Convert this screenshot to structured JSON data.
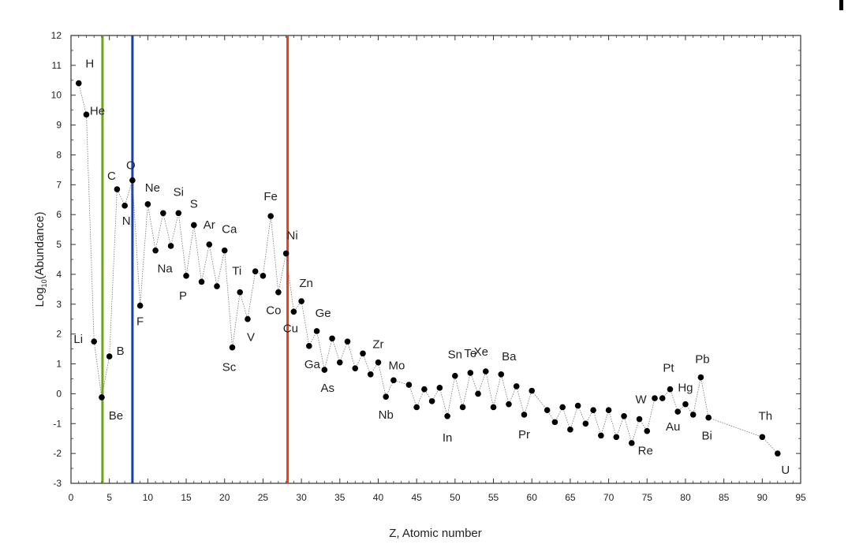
{
  "chart_data": {
    "type": "scatter",
    "title": "",
    "xlabel": "Z, Atomic number",
    "ylabel_main": "Log",
    "ylabel_sub": "10",
    "ylabel_rest": "(Abundance)",
    "xlim": [
      0,
      95
    ],
    "ylim": [
      -3,
      12
    ],
    "xticks": [
      0,
      5,
      10,
      15,
      20,
      25,
      30,
      35,
      40,
      45,
      50,
      55,
      60,
      65,
      70,
      75,
      80,
      85,
      90,
      95
    ],
    "yticks": [
      -3,
      -2,
      -1,
      0,
      1,
      2,
      3,
      4,
      5,
      6,
      7,
      8,
      9,
      10,
      11,
      12
    ],
    "grid": false,
    "series": [
      {
        "line": "dotted-gray",
        "marker": "filled-circle",
        "x": [
          1,
          2,
          3,
          4,
          5,
          6,
          7,
          8,
          9,
          10,
          11,
          12,
          13,
          14,
          15,
          16,
          17,
          18,
          19,
          20,
          21,
          22,
          23,
          24,
          25,
          26,
          27,
          28,
          29,
          30,
          31,
          32,
          33,
          34,
          35,
          36,
          37,
          38,
          39,
          40,
          41,
          42,
          44,
          45,
          46,
          47,
          48,
          49,
          50,
          51,
          52,
          53,
          54,
          55,
          56,
          57,
          58,
          59,
          60,
          62,
          63,
          64,
          65,
          66,
          67,
          68,
          69,
          70,
          71,
          72,
          73,
          74,
          75,
          76,
          77,
          78,
          79,
          80,
          81,
          82,
          83,
          90,
          92
        ],
        "y": [
          10.4,
          9.35,
          1.75,
          -0.12,
          1.25,
          6.85,
          6.3,
          7.15,
          2.95,
          6.35,
          4.8,
          6.05,
          4.95,
          6.05,
          3.95,
          5.65,
          3.75,
          5.0,
          3.6,
          4.8,
          1.55,
          3.4,
          2.5,
          4.1,
          3.95,
          5.95,
          3.4,
          4.7,
          2.75,
          3.1,
          1.6,
          2.1,
          0.8,
          1.85,
          1.05,
          1.75,
          0.85,
          1.35,
          0.65,
          1.05,
          -0.1,
          0.45,
          0.3,
          -0.45,
          0.15,
          -0.25,
          0.2,
          -0.75,
          0.6,
          -0.45,
          0.7,
          0.0,
          0.75,
          -0.45,
          0.65,
          -0.35,
          0.25,
          -0.7,
          0.1,
          -0.55,
          -0.95,
          -0.45,
          -1.2,
          -0.4,
          -1.0,
          -0.55,
          -1.4,
          -0.55,
          -1.45,
          -0.75,
          -1.65,
          -0.85,
          -1.25,
          -0.15,
          -0.15,
          0.15,
          -0.6,
          -0.35,
          -0.7,
          0.55,
          -0.8,
          -1.45,
          -2.0
        ]
      }
    ],
    "element_labels": [
      {
        "text": "H",
        "x": 1,
        "y": 10.4
      },
      {
        "text": "He",
        "x": 2,
        "y": 9.35
      },
      {
        "text": "Li",
        "x": 3,
        "y": 1.75
      },
      {
        "text": "Be",
        "x": 4,
        "y": -0.12
      },
      {
        "text": "B",
        "x": 5,
        "y": 1.25
      },
      {
        "text": "C",
        "x": 6,
        "y": 6.85
      },
      {
        "text": "N",
        "x": 7,
        "y": 6.3
      },
      {
        "text": "O",
        "x": 8,
        "y": 7.15
      },
      {
        "text": "F",
        "x": 9,
        "y": 2.95
      },
      {
        "text": "Ne",
        "x": 10,
        "y": 6.35
      },
      {
        "text": "Na",
        "x": 11,
        "y": 4.8
      },
      {
        "text": "Si",
        "x": 14,
        "y": 6.05
      },
      {
        "text": "P",
        "x": 15,
        "y": 3.95
      },
      {
        "text": "S",
        "x": 16,
        "y": 5.65
      },
      {
        "text": "Ar",
        "x": 18,
        "y": 5.0
      },
      {
        "text": "Ca",
        "x": 20,
        "y": 4.8
      },
      {
        "text": "Sc",
        "x": 21,
        "y": 1.55
      },
      {
        "text": "Ti",
        "x": 22,
        "y": 3.4
      },
      {
        "text": "V",
        "x": 23,
        "y": 2.5
      },
      {
        "text": "Fe",
        "x": 26,
        "y": 5.95
      },
      {
        "text": "Co",
        "x": 27,
        "y": 3.4
      },
      {
        "text": "Ni",
        "x": 28,
        "y": 4.7
      },
      {
        "text": "Cu",
        "x": 29,
        "y": 2.75
      },
      {
        "text": "Zn",
        "x": 30,
        "y": 3.1
      },
      {
        "text": "Ga",
        "x": 31,
        "y": 1.6
      },
      {
        "text": "Ge",
        "x": 32,
        "y": 2.1
      },
      {
        "text": "As",
        "x": 33,
        "y": 0.8
      },
      {
        "text": "Zr",
        "x": 40,
        "y": 1.05
      },
      {
        "text": "Nb",
        "x": 41,
        "y": -0.1
      },
      {
        "text": "Mo",
        "x": 42,
        "y": 0.45
      },
      {
        "text": "Sn",
        "x": 50,
        "y": 0.6
      },
      {
        "text": "In",
        "x": 49,
        "y": -0.75
      },
      {
        "text": "Te",
        "x": 52,
        "y": 0.7
      },
      {
        "text": "Xe",
        "x": 54,
        "y": 0.75
      },
      {
        "text": "Ba",
        "x": 56,
        "y": 0.65
      },
      {
        "text": "Pr",
        "x": 59,
        "y": -0.7
      },
      {
        "text": "W",
        "x": 74,
        "y": -0.85
      },
      {
        "text": "Re",
        "x": 75,
        "y": -1.25
      },
      {
        "text": "Pt",
        "x": 78,
        "y": 0.15
      },
      {
        "text": "Hg",
        "x": 80,
        "y": -0.35
      },
      {
        "text": "Au",
        "x": 79,
        "y": -0.6
      },
      {
        "text": "Pb",
        "x": 82,
        "y": 0.55
      },
      {
        "text": "Bi",
        "x": 83,
        "y": -0.8
      },
      {
        "text": "Th",
        "x": 90,
        "y": -1.45
      },
      {
        "text": "U",
        "x": 92,
        "y": -2.0
      }
    ],
    "vertical_lines": [
      {
        "x": 4.1,
        "color": "#6aa51a"
      },
      {
        "x": 8.0,
        "color": "#1b3fa8"
      },
      {
        "x": 28.2,
        "color": "#f03c14"
      }
    ]
  }
}
